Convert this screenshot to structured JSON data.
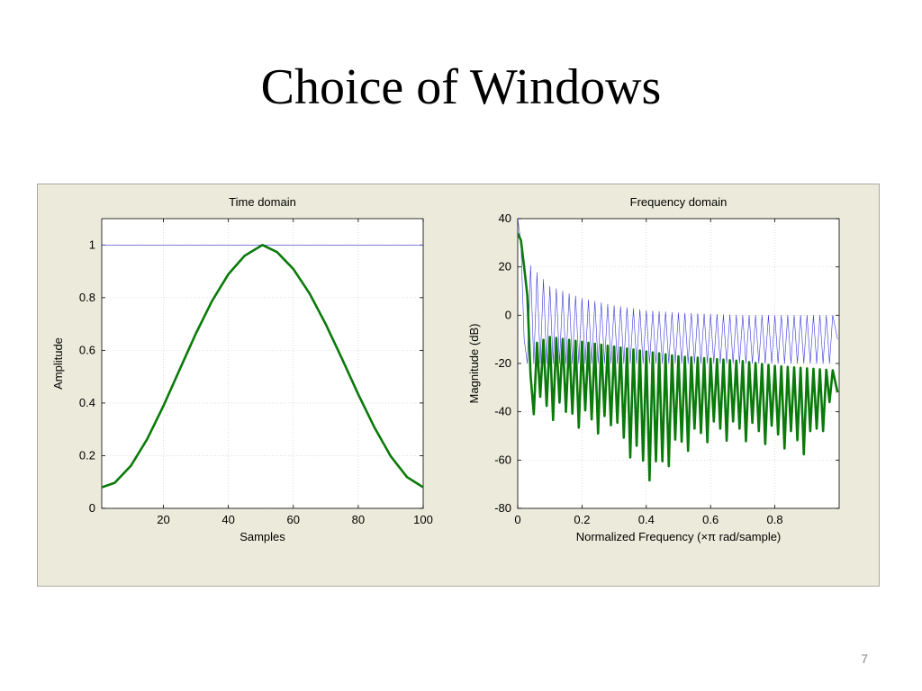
{
  "slide": {
    "title": "Choice of Windows",
    "page_number": "7"
  },
  "colors": {
    "panel_background": "#ecebdb",
    "plot_background": "#ffffff",
    "grid": "#c8c8c8",
    "rectangular_window": "#3a3adb",
    "hamming_window": "#0a7a0a"
  },
  "chart_data": [
    {
      "type": "line",
      "title": "Time domain",
      "xlabel": "Samples",
      "ylabel": "Amplitude",
      "xlim": [
        1,
        100
      ],
      "ylim": [
        0,
        1.1
      ],
      "xticks": [
        20,
        40,
        60,
        80,
        100
      ],
      "xtick_labels": [
        "20",
        "40",
        "60",
        "80",
        "100"
      ],
      "yticks": [
        0,
        0.2,
        0.4,
        0.6,
        0.8,
        1
      ],
      "ytick_labels": [
        "0",
        "0.2",
        "0.4",
        "0.6",
        "0.8",
        "1"
      ],
      "grid": true,
      "legend": "none",
      "series": [
        {
          "window": "rectangular",
          "color": "#3a3adb",
          "x": [
            1,
            100
          ],
          "y": [
            1,
            1
          ]
        },
        {
          "window": "hamming",
          "color": "#0a7a0a",
          "x": [
            1,
            5,
            10,
            15,
            20,
            25,
            30,
            35,
            40,
            45,
            50.5,
            55,
            60,
            65,
            70,
            75,
            80,
            85,
            90,
            95,
            100
          ],
          "y": [
            0.08,
            0.097,
            0.162,
            0.263,
            0.389,
            0.527,
            0.664,
            0.788,
            0.889,
            0.959,
            1.0,
            0.973,
            0.909,
            0.816,
            0.699,
            0.568,
            0.433,
            0.307,
            0.198,
            0.119,
            0.08
          ]
        }
      ]
    },
    {
      "type": "line",
      "title": "Frequency domain",
      "xlabel": "Normalized Frequency  (×π rad/sample)",
      "ylabel": "Magnitude (dB)",
      "xlim": [
        0,
        1
      ],
      "ylim": [
        -80,
        40
      ],
      "xticks": [
        0,
        0.2,
        0.4,
        0.6,
        0.8
      ],
      "xtick_labels": [
        "0",
        "0.2",
        "0.4",
        "0.6",
        "0.8"
      ],
      "yticks": [
        -80,
        -60,
        -40,
        -20,
        0,
        20,
        40
      ],
      "ytick_labels": [
        "-80",
        "-60",
        "-40",
        "-20",
        "0",
        "20",
        "40"
      ],
      "grid": true,
      "legend": "none",
      "series": [
        {
          "window": "rectangular",
          "color": "#3a3adb",
          "mainlobe_x": [
            0,
            0.01,
            0.02
          ],
          "mainlobe_y": [
            40,
            30,
            -10
          ],
          "sidelobe_peak_x": [
            0.03,
            0.1,
            0.2,
            0.3,
            0.4,
            0.5,
            0.6,
            0.7,
            0.8,
            0.9,
            1.0
          ],
          "sidelobe_peak_y": [
            22,
            12,
            7,
            4,
            2,
            1,
            0.5,
            0,
            0,
            0,
            0
          ],
          "sidelobe_spacing": 0.02,
          "null_depth_db": -20,
          "end_value": -10
        },
        {
          "window": "hamming",
          "color": "#0a7a0a",
          "mainlobe_x": [
            0,
            0.01,
            0.02,
            0.03,
            0.04
          ],
          "mainlobe_y": [
            34,
            31,
            20,
            8,
            -25
          ],
          "sidelobe_peak_x": [
            0.05,
            0.1,
            0.2,
            0.3,
            0.4,
            0.5,
            0.6,
            0.7,
            0.8,
            0.9,
            1.0
          ],
          "sidelobe_peak_y": [
            -12,
            -9,
            -11,
            -13,
            -15,
            -17,
            -18,
            -19,
            -21,
            -22,
            -23
          ],
          "sidelobe_spacing": 0.02,
          "null_depth_x": [
            0.05,
            0.3,
            0.42,
            0.5,
            0.6,
            0.7,
            0.8,
            0.9,
            1.0
          ],
          "null_depth_y": [
            -35,
            -45,
            -64,
            -52,
            -46,
            -46,
            -48,
            -52,
            -32
          ],
          "end_value": -32
        }
      ]
    }
  ]
}
